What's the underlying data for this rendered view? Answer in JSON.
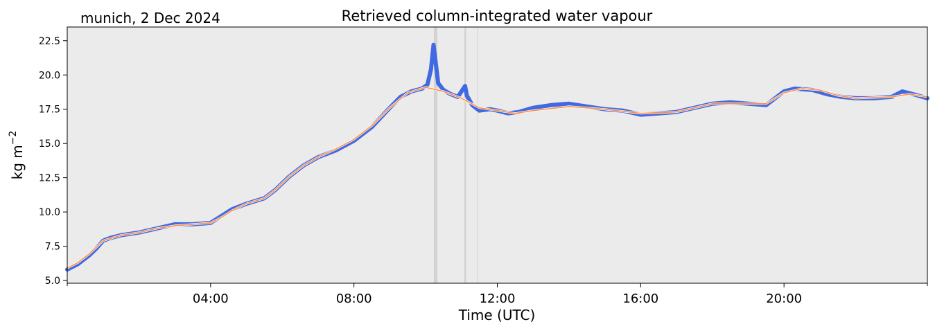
{
  "chart_data": {
    "type": "line",
    "title": "Retrieved column-integrated water vapour",
    "subtitle": "munich, 2 Dec 2024",
    "xlabel": "Time (UTC)",
    "ylabel_main": "kg m",
    "ylabel_exp": "−2",
    "xlim": [
      0,
      24
    ],
    "ylim": [
      4.8,
      23.5
    ],
    "x_ticks": [
      {
        "value": 4,
        "label": "04:00"
      },
      {
        "value": 8,
        "label": "08:00"
      },
      {
        "value": 12,
        "label": "12:00"
      },
      {
        "value": 16,
        "label": "16:00"
      },
      {
        "value": 20,
        "label": "20:00"
      }
    ],
    "y_ticks": [
      {
        "value": 5.0,
        "label": "5.0"
      },
      {
        "value": 7.5,
        "label": "7.5"
      },
      {
        "value": 10.0,
        "label": "10.0"
      },
      {
        "value": 12.5,
        "label": "12.5"
      },
      {
        "value": 15.0,
        "label": "15.0"
      },
      {
        "value": 17.5,
        "label": "17.5"
      },
      {
        "value": 20.0,
        "label": "20.0"
      },
      {
        "value": 22.5,
        "label": "22.5"
      }
    ],
    "grid": false,
    "background_color": "#ebebeb",
    "gap_bands": [
      {
        "x0": 10.23,
        "x1": 10.33,
        "color": "#d3d3d3"
      },
      {
        "x0": 11.08,
        "x1": 11.13,
        "color": "#d3d3d3"
      },
      {
        "x0": 11.44,
        "x1": 11.46,
        "color": "#d3d3d3"
      }
    ],
    "series": [
      {
        "role": "raw",
        "color": "#4169e1",
        "x": [
          0.0,
          0.3,
          0.6,
          0.8,
          1.0,
          1.2,
          1.5,
          2.0,
          2.5,
          3.0,
          3.5,
          4.0,
          4.3,
          4.6,
          5.0,
          5.5,
          5.8,
          6.2,
          6.6,
          7.0,
          7.5,
          8.0,
          8.5,
          9.0,
          9.3,
          9.6,
          9.9,
          10.05,
          10.15,
          10.22,
          10.35,
          10.5,
          10.7,
          10.9,
          11.1,
          11.15,
          11.3,
          11.5,
          11.8,
          12.0,
          12.3,
          12.6,
          13.0,
          13.5,
          14.0,
          14.5,
          15.0,
          15.5,
          16.0,
          16.5,
          17.0,
          17.5,
          18.0,
          18.5,
          19.0,
          19.5,
          19.7,
          20.0,
          20.3,
          20.8,
          21.2,
          21.6,
          22.0,
          22.5,
          23.0,
          23.3,
          23.6,
          24.0
        ],
        "y": [
          5.8,
          6.2,
          6.8,
          7.3,
          7.9,
          8.1,
          8.3,
          8.5,
          8.8,
          9.1,
          9.1,
          9.2,
          9.7,
          10.2,
          10.6,
          11.0,
          11.6,
          12.6,
          13.4,
          14.0,
          14.5,
          15.2,
          16.2,
          17.6,
          18.4,
          18.8,
          19.0,
          19.3,
          20.4,
          22.2,
          19.4,
          18.9,
          18.6,
          18.4,
          19.2,
          18.5,
          17.8,
          17.4,
          17.5,
          17.4,
          17.2,
          17.3,
          17.6,
          17.8,
          17.9,
          17.7,
          17.5,
          17.4,
          17.1,
          17.2,
          17.3,
          17.6,
          17.9,
          18.0,
          17.9,
          17.8,
          18.2,
          18.8,
          19.0,
          18.9,
          18.6,
          18.4,
          18.3,
          18.3,
          18.4,
          18.8,
          18.6,
          18.3
        ]
      },
      {
        "role": "smoothed",
        "color": "#ff8c42",
        "x": [
          0.0,
          0.3,
          0.6,
          0.8,
          1.0,
          1.5,
          2.0,
          2.5,
          3.0,
          3.5,
          4.0,
          4.3,
          4.6,
          5.0,
          5.5,
          5.8,
          6.2,
          6.6,
          7.0,
          7.5,
          8.0,
          8.5,
          9.0,
          9.5,
          10.0,
          10.5,
          11.0,
          11.5,
          12.0,
          12.5,
          13.0,
          14.0,
          15.0,
          16.0,
          17.0,
          18.0,
          19.0,
          19.5,
          20.0,
          20.5,
          21.0,
          21.5,
          22.0,
          23.0,
          23.5,
          24.0
        ],
        "y": [
          5.9,
          6.3,
          6.9,
          7.4,
          7.9,
          8.3,
          8.5,
          8.8,
          9.0,
          9.1,
          9.2,
          9.6,
          10.1,
          10.6,
          11.0,
          11.6,
          12.6,
          13.4,
          14.0,
          14.6,
          15.3,
          16.3,
          17.6,
          18.7,
          19.1,
          18.8,
          18.3,
          17.6,
          17.4,
          17.2,
          17.4,
          17.7,
          17.5,
          17.2,
          17.3,
          17.9,
          17.9,
          17.9,
          18.7,
          19.0,
          18.9,
          18.5,
          18.3,
          18.4,
          18.6,
          18.4
        ]
      }
    ]
  }
}
